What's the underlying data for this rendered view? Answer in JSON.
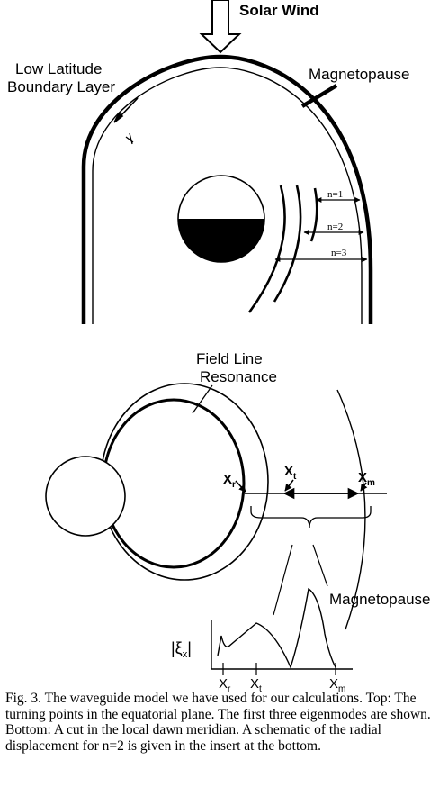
{
  "top": {
    "solar_wind": "Solar Wind",
    "llbl_line1": "Low Latitude",
    "llbl_line2": "Boundary Layer",
    "magnetopause": "Magnetopause",
    "modes": [
      "n=1",
      "n=2",
      "n=3"
    ]
  },
  "bottom": {
    "flr_line1": "Field Line",
    "flr_line2": "Resonance",
    "magnetopause": "Magnetopause",
    "x_r": "X",
    "x_r_sub": "r",
    "x_t": "X",
    "x_t_sub": "t",
    "x_m": "X",
    "x_m_sub": "m",
    "xi_x": "|ξ",
    "xi_x_sub": "x",
    "xi_x_end": "|"
  },
  "caption": "Fig. 3.  The waveguide model we have used for our calculations.  Top: The turning points in the equatorial plane. The first three eigenmodes are shown. Bottom: A cut in the local dawn meridian.  A schematic of the radial displacement for n=2 is given in the insert at the bottom."
}
